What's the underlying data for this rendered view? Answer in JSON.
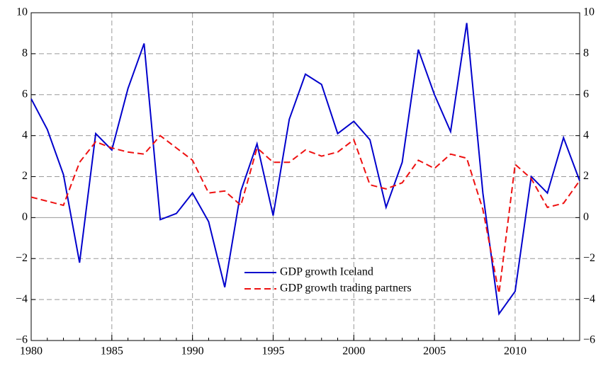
{
  "chart_data": {
    "type": "line",
    "x": [
      1980,
      1981,
      1982,
      1983,
      1984,
      1985,
      1986,
      1987,
      1988,
      1989,
      1990,
      1991,
      1992,
      1993,
      1994,
      1995,
      1996,
      1997,
      1998,
      1999,
      2000,
      2001,
      2002,
      2003,
      2004,
      2005,
      2006,
      2007,
      2008,
      2009,
      2010,
      2011,
      2012,
      2013,
      2014
    ],
    "series": [
      {
        "name": "GDP growth Iceland",
        "color": "#0000cc",
        "dash": false,
        "values": [
          5.8,
          4.3,
          2.1,
          -2.2,
          4.1,
          3.3,
          6.3,
          8.5,
          -0.1,
          0.2,
          1.2,
          -0.2,
          -3.4,
          1.3,
          3.6,
          0.1,
          4.8,
          7.0,
          6.5,
          4.1,
          4.7,
          3.8,
          0.5,
          2.7,
          8.2,
          6.0,
          4.2,
          9.5,
          1.2,
          -4.7,
          -3.6,
          2.0,
          1.2,
          3.9,
          1.8
        ]
      },
      {
        "name": "GDP growth trading partners",
        "color": "#ee1111",
        "dash": true,
        "values": [
          1.0,
          0.8,
          0.6,
          2.7,
          3.7,
          3.4,
          3.2,
          3.1,
          4.0,
          3.4,
          2.8,
          1.2,
          1.3,
          0.6,
          3.4,
          2.7,
          2.7,
          3.3,
          3.0,
          3.2,
          3.8,
          1.6,
          1.4,
          1.7,
          2.8,
          2.4,
          3.1,
          2.9,
          0.4,
          -3.7,
          2.6,
          1.9,
          0.5,
          0.7,
          1.8
        ]
      }
    ],
    "xlim": [
      1980,
      2014
    ],
    "xticks": [
      1980,
      1985,
      1990,
      1995,
      2000,
      2005,
      2010
    ],
    "ylim": [
      -6,
      10
    ],
    "yticks": [
      {
        "value": -6,
        "label": "−6"
      },
      {
        "value": -4,
        "label": "−4"
      },
      {
        "value": -2,
        "label": "−2"
      },
      0,
      2,
      4,
      6,
      8,
      10
    ],
    "y2lim": [
      -6,
      10
    ],
    "y2ticks": [
      {
        "value": -6,
        "label": "−6"
      },
      {
        "value": -4,
        "label": "−4"
      },
      {
        "value": -2,
        "label": "−2"
      },
      0,
      2,
      4,
      6,
      8,
      10
    ],
    "grid": true
  }
}
